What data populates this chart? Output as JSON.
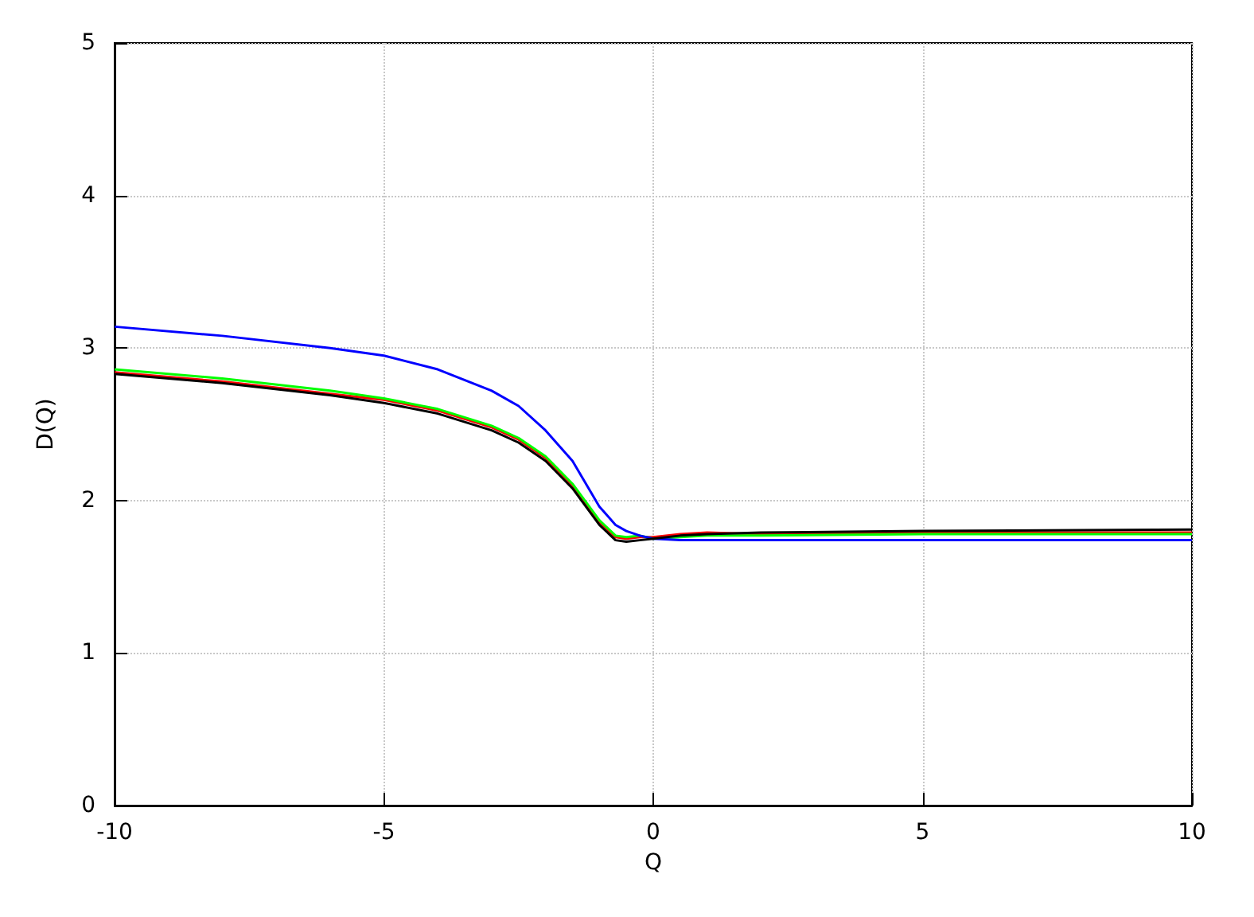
{
  "chart_data": {
    "type": "line",
    "xlabel": "Q",
    "ylabel": "D(Q)",
    "x": [
      -10,
      -8,
      -6,
      -5,
      -4,
      -3,
      -2.5,
      -2,
      -1.5,
      -1,
      -0.7,
      -0.5,
      -0.25,
      0,
      0.5,
      1,
      2,
      5,
      10
    ],
    "series": [
      {
        "color": "#ff0000",
        "values": [
          2.84,
          2.78,
          2.7,
          2.66,
          2.59,
          2.48,
          2.4,
          2.28,
          2.1,
          1.86,
          1.76,
          1.75,
          1.76,
          1.76,
          1.78,
          1.79,
          1.78,
          1.79,
          1.79
        ]
      },
      {
        "color": "#00ff00",
        "values": [
          2.86,
          2.8,
          2.72,
          2.67,
          2.6,
          2.49,
          2.41,
          2.29,
          2.11,
          1.87,
          1.77,
          1.76,
          1.77,
          1.75,
          1.76,
          1.77,
          1.77,
          1.78,
          1.78
        ]
      },
      {
        "color": "#0000ff",
        "values": [
          3.14,
          3.08,
          3.0,
          2.95,
          2.86,
          2.72,
          2.62,
          2.46,
          2.26,
          1.96,
          1.84,
          1.8,
          1.77,
          1.75,
          1.74,
          1.74,
          1.74,
          1.74,
          1.74
        ]
      },
      {
        "color": "#000000",
        "values": [
          2.83,
          2.77,
          2.69,
          2.64,
          2.57,
          2.46,
          2.38,
          2.26,
          2.08,
          1.84,
          1.74,
          1.73,
          1.74,
          1.75,
          1.77,
          1.78,
          1.79,
          1.8,
          1.81
        ]
      }
    ],
    "xlim": [
      -10,
      10
    ],
    "xticks": [
      -10,
      -5,
      0,
      5,
      10
    ],
    "ylim": [
      0,
      5
    ],
    "yticks": [
      0,
      1,
      2,
      3,
      4,
      5
    ],
    "grid": true,
    "marker": "none",
    "line_style": "solid"
  }
}
